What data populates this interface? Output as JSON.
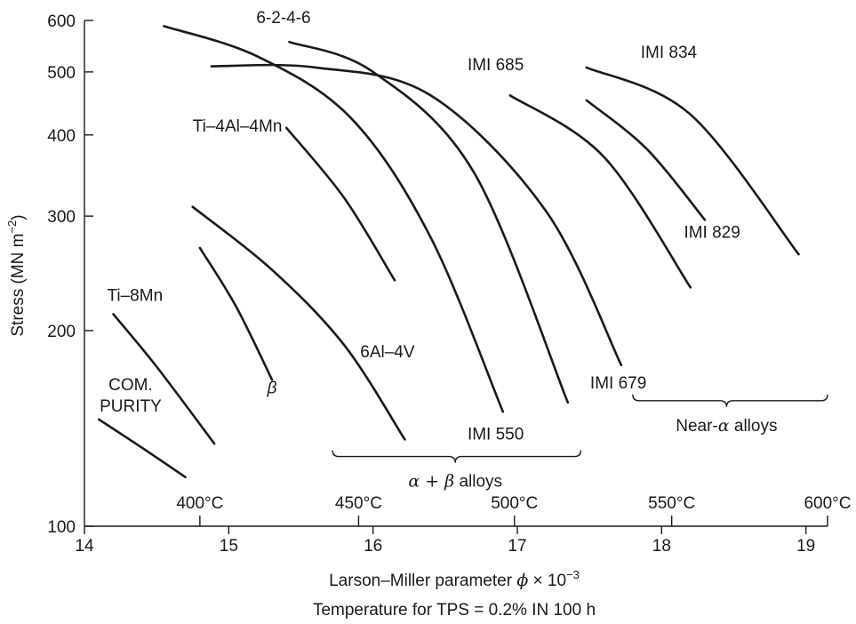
{
  "chart_data": {
    "type": "line",
    "title": "",
    "xlabel": {
      "prefix": "Larson–Miller parameter ",
      "symbol": "ϕ",
      "suffix": " × 10",
      "exponent": "−3"
    },
    "x2label": "Temperature for TPS = 0.2% IN 100 h",
    "ylabel": {
      "text": "Stress (MN m",
      "exponent": "−2",
      "close": ")"
    },
    "xlim": [
      14,
      19.15
    ],
    "ylim": [
      100,
      600
    ],
    "yscale": "log",
    "x_ticks": [
      {
        "value": 14,
        "label": "14"
      },
      {
        "value": 15,
        "label": "15"
      },
      {
        "value": 16,
        "label": "16"
      },
      {
        "value": 17,
        "label": "17"
      },
      {
        "value": 18,
        "label": "18"
      },
      {
        "value": 19,
        "label": "19"
      }
    ],
    "y_ticks": [
      {
        "value": 100,
        "label": "100"
      },
      {
        "value": 200,
        "label": "200"
      },
      {
        "value": 300,
        "label": "300"
      },
      {
        "value": 400,
        "label": "400"
      },
      {
        "value": 500,
        "label": "500"
      },
      {
        "value": 600,
        "label": "600"
      }
    ],
    "temperature_ticks": [
      {
        "x": 14.8,
        "label": "400°C"
      },
      {
        "x": 15.9,
        "label": "450°C"
      },
      {
        "x": 16.98,
        "label": "500°C"
      },
      {
        "x": 18.07,
        "label": "550°C"
      },
      {
        "x": 19.15,
        "label": "600°C"
      }
    ],
    "series": [
      {
        "name": "COM. PURITY",
        "x": [
          14.1,
          14.4,
          14.7
        ],
        "y": [
          146,
          132,
          119
        ]
      },
      {
        "name": "Ti–8Mn",
        "x": [
          14.2,
          14.5,
          14.9
        ],
        "y": [
          212,
          176,
          134
        ]
      },
      {
        "name": "β",
        "x": [
          14.8,
          15.05,
          15.3
        ],
        "y": [
          268,
          218,
          168
        ]
      },
      {
        "name": "6Al–4V",
        "x": [
          14.75,
          15.3,
          15.8,
          16.22
        ],
        "y": [
          310,
          248,
          190,
          136
        ]
      },
      {
        "name": "Ti–4Al–4Mn",
        "x": [
          15.4,
          15.8,
          16.15
        ],
        "y": [
          410,
          320,
          239
        ]
      },
      {
        "name": "IMI 550",
        "x": [
          14.55,
          15.2,
          15.85,
          16.4,
          16.9
        ],
        "y": [
          588,
          528,
          424,
          278,
          150
        ]
      },
      {
        "name": "6-2-4-6",
        "x": [
          15.42,
          16.0,
          16.7,
          17.35
        ],
        "y": [
          556,
          500,
          350,
          155
        ]
      },
      {
        "name": "IMI 679",
        "x": [
          14.88,
          15.6,
          16.4,
          17.2,
          17.72
        ],
        "y": [
          510,
          508,
          460,
          305,
          177
        ]
      },
      {
        "name": "IMI 685",
        "x": [
          16.95,
          17.6,
          18.2
        ],
        "y": [
          460,
          370,
          233
        ]
      },
      {
        "name": "IMI 829",
        "x": [
          17.48,
          17.9,
          18.3
        ],
        "y": [
          452,
          380,
          296
        ]
      },
      {
        "name": "IMI 834",
        "x": [
          17.48,
          18.2,
          18.95
        ],
        "y": [
          508,
          430,
          262
        ]
      }
    ],
    "curve_labels": [
      {
        "series": "COM. PURITY",
        "lines": [
          "COM.",
          "PURITY"
        ],
        "x": 14.32,
        "y": 162,
        "anchor": "middle"
      },
      {
        "series": "Ti–8Mn",
        "lines": [
          "Ti–8Mn"
        ],
        "x": 14.35,
        "y": 222,
        "anchor": "middle"
      },
      {
        "series": "β",
        "lines": [
          "β"
        ],
        "x": 15.3,
        "y": 160,
        "anchor": "middle",
        "italic": true
      },
      {
        "series": "6Al–4V",
        "lines": [
          "6Al–4V"
        ],
        "x": 16.1,
        "y": 182,
        "anchor": "middle"
      },
      {
        "series": "Ti–4Al–4Mn",
        "lines": [
          "Ti–4Al–4Mn"
        ],
        "x": 15.37,
        "y": 405,
        "anchor": "end"
      },
      {
        "series": "IMI 550",
        "lines": [
          "IMI 550"
        ],
        "x": 16.85,
        "y": 136,
        "anchor": "middle"
      },
      {
        "series": "6-2-4-6",
        "lines": [
          "6-2-4-6"
        ],
        "x": 15.38,
        "y": 594,
        "anchor": "middle"
      },
      {
        "series": "IMI 679",
        "lines": [
          "IMI 679"
        ],
        "x": 17.7,
        "y": 163,
        "anchor": "middle"
      },
      {
        "series": "IMI 685",
        "lines": [
          "IMI 685"
        ],
        "x": 16.85,
        "y": 503,
        "anchor": "middle"
      },
      {
        "series": "IMI 829",
        "lines": [
          "IMI 829"
        ],
        "x": 18.35,
        "y": 278,
        "anchor": "middle"
      },
      {
        "series": "IMI 834",
        "lines": [
          "IMI 834"
        ],
        "x": 18.05,
        "y": 526,
        "anchor": "middle"
      }
    ],
    "annotations": [
      {
        "name": "alpha-beta-alloys",
        "x_from": 15.72,
        "x_to": 17.44,
        "y": 128,
        "tip": 16.57,
        "label_symbol": "α + β",
        "label_text": " alloys"
      },
      {
        "name": "near-alpha-alloys",
        "x_from": 17.8,
        "x_to": 19.15,
        "y": 156,
        "tip": 18.45,
        "label_prefix": "Near-",
        "label_symbol": "α",
        "label_text": " alloys"
      }
    ],
    "grid": false,
    "legend": "none"
  }
}
